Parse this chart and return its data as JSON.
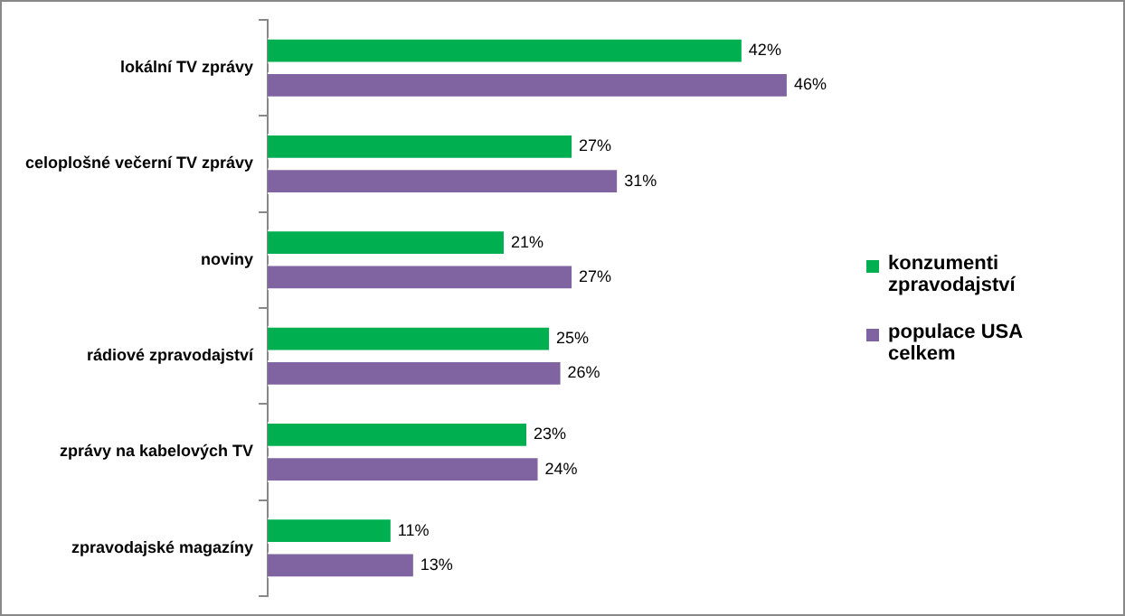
{
  "chart_data": {
    "type": "bar",
    "orientation": "horizontal",
    "categories": [
      "lokální TV zprávy",
      "celoplošné večerní TV zprávy",
      "noviny",
      "rádiové zpravodajství",
      "zprávy na kabelových TV",
      "zpravodajské magazíny"
    ],
    "series": [
      {
        "name": "konzumenti zpravodajství",
        "color": "#00b050",
        "values": [
          42,
          27,
          21,
          25,
          23,
          11
        ],
        "value_labels": [
          "42%",
          "27%",
          "21%",
          "25%",
          "23%",
          "11%"
        ]
      },
      {
        "name": "populace USA celkem",
        "color": "#8064a2",
        "values": [
          46,
          31,
          27,
          26,
          24,
          13
        ],
        "value_labels": [
          "46%",
          "31%",
          "27%",
          "26%",
          "24%",
          "13%"
        ]
      }
    ],
    "legend": "right",
    "grid": false
  }
}
